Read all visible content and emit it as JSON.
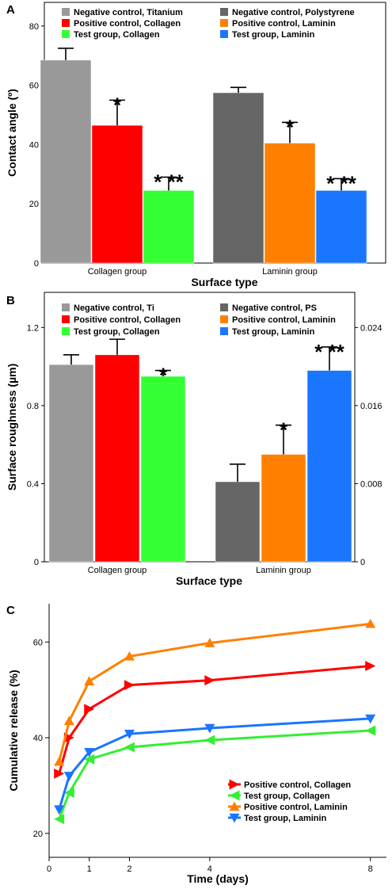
{
  "chart_data": [
    {
      "panel": "A",
      "type": "bar",
      "xlabel": "Surface type",
      "ylabel": "Contact angle (º)",
      "ylim": [
        0,
        88
      ],
      "yticks": [
        0,
        20,
        40,
        60,
        80
      ],
      "categories": [
        "Collagen group",
        "Laminin group"
      ],
      "series": [
        {
          "name": "Negative control, Titanium",
          "color": "#999999",
          "values": [
            68.5,
            null
          ],
          "errors": [
            4,
            null
          ],
          "mark": [
            "",
            ""
          ]
        },
        {
          "name": "Positive control, Collagen",
          "color": "#ff0000",
          "values": [
            46.5,
            null
          ],
          "errors": [
            8.5,
            null
          ],
          "mark": [
            "*",
            ""
          ]
        },
        {
          "name": "Test group, Collagen",
          "color": "#33ff33",
          "values": [
            24.5,
            null
          ],
          "errors": [
            4.5,
            null
          ],
          "mark": [
            "* **",
            ""
          ]
        },
        {
          "name": "Negative control, Polystyrene",
          "color": "#666666",
          "values": [
            null,
            57.5
          ],
          "errors": [
            null,
            1.8
          ],
          "mark": [
            "",
            ""
          ]
        },
        {
          "name": "Positive control, Laminin",
          "color": "#ff8000",
          "values": [
            null,
            40.5
          ],
          "errors": [
            null,
            7
          ],
          "mark": [
            "",
            "*"
          ]
        },
        {
          "name": "Test group, Laminin",
          "color": "#1a75ff",
          "values": [
            null,
            24.5
          ],
          "errors": [
            null,
            4
          ],
          "mark": [
            "",
            "* **"
          ]
        }
      ]
    },
    {
      "panel": "B",
      "type": "bar",
      "xlabel": "Surface type",
      "ylabel": "Surface roughness (µm)",
      "ylim": [
        0,
        1.38
      ],
      "yticks": [
        0,
        0.4,
        0.8,
        1.2
      ],
      "ytick_labels": [
        "0",
        "0.4",
        "0.8",
        "1.2"
      ],
      "y2lim": [
        0,
        0.0276
      ],
      "y2ticks": [
        0,
        0.008,
        0.016,
        0.024
      ],
      "y2tick_labels": [
        "0",
        "0.008",
        "0.016",
        "0.024"
      ],
      "categories": [
        "Collagen group",
        "Laminin group"
      ],
      "series": [
        {
          "name": "Negative control, Ti",
          "color": "#999999",
          "values": [
            1.01,
            null
          ],
          "errors": [
            0.05,
            null
          ],
          "mark": [
            "",
            ""
          ]
        },
        {
          "name": "Positive control, Collagen",
          "color": "#ff0000",
          "values": [
            1.06,
            null
          ],
          "errors": [
            0.08,
            null
          ],
          "mark": [
            "",
            ""
          ]
        },
        {
          "name": "Test group, Collagen",
          "color": "#33ff33",
          "values": [
            0.95,
            null
          ],
          "errors": [
            0.03,
            null
          ],
          "mark": [
            "*",
            ""
          ]
        },
        {
          "name": "Negative control, PS",
          "color": "#666666",
          "values": [
            null,
            0.41
          ],
          "errors": [
            null,
            0.09
          ],
          "mark": [
            "",
            ""
          ]
        },
        {
          "name": "Positive control, Laminin",
          "color": "#ff8000",
          "values": [
            null,
            0.55
          ],
          "errors": [
            null,
            0.15
          ],
          "mark": [
            "",
            "*"
          ]
        },
        {
          "name": "Test group, Laminin",
          "color": "#1a75ff",
          "values": [
            null,
            0.98
          ],
          "errors": [
            null,
            0.12
          ],
          "mark": [
            "",
            "* **"
          ]
        }
      ]
    },
    {
      "panel": "C",
      "type": "line",
      "xlabel": "Time (days)",
      "ylabel": "Cumulative release (%)",
      "xlim": [
        0,
        8.4
      ],
      "ylim": [
        15,
        68
      ],
      "xticks": [
        0,
        1,
        2,
        4,
        8
      ],
      "yticks": [
        20,
        40,
        60
      ],
      "series": [
        {
          "name": "Positive control, Collagen",
          "color": "#ff0000",
          "marker": "triangle-right",
          "x": [
            0.25,
            0.5,
            1,
            2,
            4,
            8
          ],
          "y": [
            32.5,
            40,
            46,
            51,
            52,
            55
          ]
        },
        {
          "name": "Test group, Collagen",
          "color": "#33ee33",
          "marker": "triangle-left",
          "x": [
            0.25,
            0.5,
            1,
            2,
            4,
            8
          ],
          "y": [
            23,
            28.5,
            35.5,
            38,
            39.5,
            41.5
          ]
        },
        {
          "name": "Positive control, Laminin",
          "color": "#ff8000",
          "marker": "triangle-up",
          "x": [
            0.25,
            0.5,
            1,
            2,
            4,
            8
          ],
          "y": [
            35,
            43.5,
            51.8,
            57,
            59.8,
            63.8
          ]
        },
        {
          "name": "Test group, Laminin",
          "color": "#1a75ff",
          "marker": "triangle-down",
          "x": [
            0.25,
            0.5,
            1,
            2,
            4,
            8
          ],
          "y": [
            25,
            32,
            37,
            40.8,
            42,
            44
          ]
        }
      ]
    }
  ]
}
